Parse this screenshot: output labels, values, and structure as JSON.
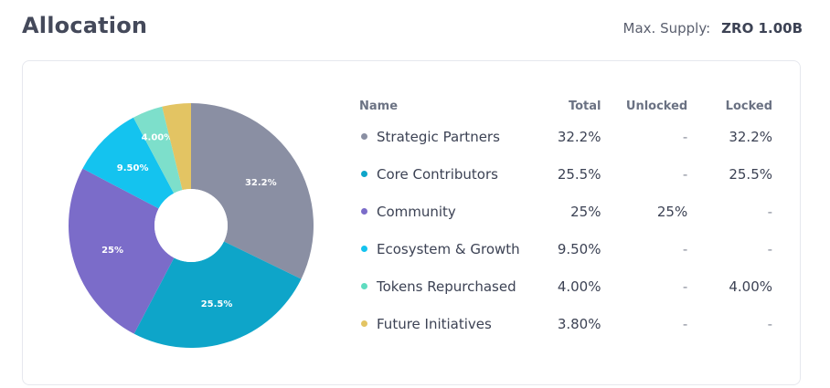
{
  "header": {
    "title": "Allocation",
    "supply_label": "Max. Supply:",
    "supply_value": "ZRO 1.00B"
  },
  "table": {
    "columns": [
      "Name",
      "Total",
      "Unlocked",
      "Locked"
    ],
    "rows": [
      {
        "name": "Strategic Partners",
        "total": "32.2%",
        "unlocked": "-",
        "locked": "32.2%",
        "color": "#8a8fa3"
      },
      {
        "name": "Core Contributors",
        "total": "25.5%",
        "unlocked": "-",
        "locked": "25.5%",
        "color": "#0ea5c9"
      },
      {
        "name": "Community",
        "total": "25%",
        "unlocked": "25%",
        "locked": "-",
        "color": "#7b6cc9"
      },
      {
        "name": "Ecosystem & Growth",
        "total": "9.50%",
        "unlocked": "-",
        "locked": "-",
        "color": "#14c3ef"
      },
      {
        "name": "Tokens Repurchased",
        "total": "4.00%",
        "unlocked": "-",
        "locked": "4.00%",
        "color": "#5fdcc0"
      },
      {
        "name": "Future Initiatives",
        "total": "3.80%",
        "unlocked": "-",
        "locked": "-",
        "color": "#e3c463"
      }
    ]
  },
  "chart_data": {
    "type": "pie",
    "categories": [
      "Strategic Partners",
      "Core Contributors",
      "Community",
      "Ecosystem & Growth",
      "Tokens Repurchased",
      "Future Initiatives"
    ],
    "values": [
      32.2,
      25.5,
      25,
      9.5,
      4.0,
      3.8
    ],
    "labels": [
      "32.2%",
      "25.5%",
      "25%",
      "9.50%",
      "4.00%",
      ""
    ],
    "colors": [
      "#8a8fa3",
      "#0ea5c9",
      "#7b6cc9",
      "#14c3ef",
      "#7ddfcb",
      "#e3c463"
    ],
    "donut": true
  }
}
